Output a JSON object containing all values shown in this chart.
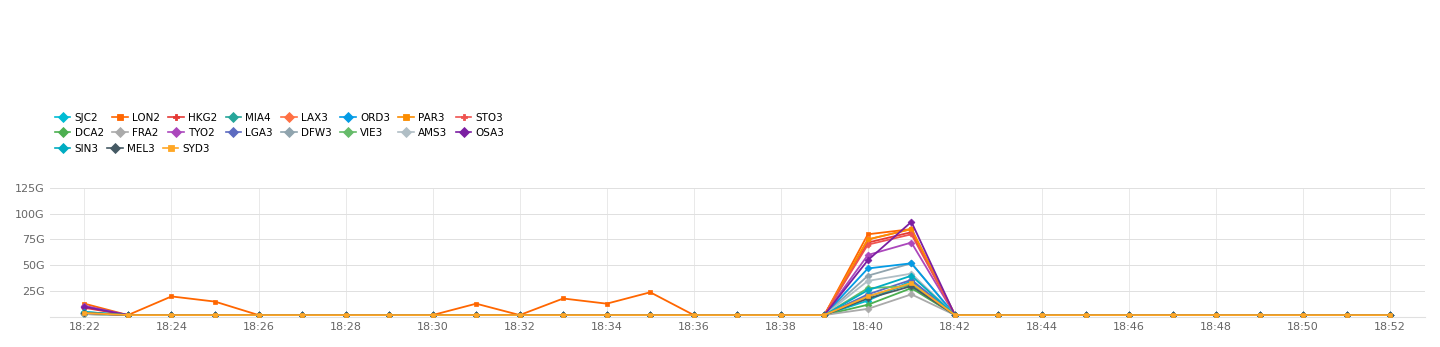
{
  "series": {
    "SJC2": {
      "color": "#00bcd4",
      "marker": "D",
      "lw": 1.3,
      "values": [
        5,
        2,
        2,
        2,
        2,
        2,
        2,
        2,
        2,
        2,
        2,
        2,
        2,
        2,
        2,
        2,
        2,
        2,
        16,
        35,
        2,
        2,
        2,
        2,
        2,
        2,
        2,
        2,
        2,
        2,
        2
      ]
    },
    "DCA2": {
      "color": "#4caf50",
      "marker": "D",
      "lw": 1.3,
      "values": [
        4,
        2,
        2,
        2,
        2,
        2,
        2,
        2,
        2,
        2,
        2,
        2,
        2,
        2,
        2,
        2,
        2,
        2,
        12,
        28,
        2,
        2,
        2,
        2,
        2,
        2,
        2,
        2,
        2,
        2,
        2
      ]
    },
    "LON2": {
      "color": "#ff6600",
      "marker": "s",
      "lw": 1.3,
      "values": [
        13,
        2,
        20,
        15,
        2,
        2,
        2,
        2,
        2,
        13,
        2,
        18,
        13,
        24,
        2,
        2,
        2,
        2,
        80,
        85,
        2,
        2,
        2,
        2,
        2,
        2,
        2,
        2,
        2,
        2,
        2
      ]
    },
    "FRA2": {
      "color": "#aaaaaa",
      "marker": "D",
      "lw": 1.3,
      "values": [
        3,
        2,
        2,
        2,
        2,
        2,
        2,
        2,
        2,
        2,
        2,
        2,
        2,
        2,
        2,
        2,
        2,
        2,
        8,
        22,
        2,
        2,
        2,
        2,
        2,
        2,
        2,
        2,
        2,
        2,
        2
      ]
    },
    "HKG2": {
      "color": "#e53935",
      "marker": "P",
      "lw": 1.3,
      "values": [
        9,
        2,
        2,
        2,
        2,
        2,
        2,
        2,
        2,
        2,
        2,
        2,
        2,
        2,
        2,
        2,
        2,
        2,
        72,
        82,
        2,
        2,
        2,
        2,
        2,
        2,
        2,
        2,
        2,
        2,
        2
      ]
    },
    "TYO2": {
      "color": "#ab47bc",
      "marker": "D",
      "lw": 1.3,
      "values": [
        11,
        2,
        2,
        2,
        2,
        2,
        2,
        2,
        2,
        2,
        2,
        2,
        2,
        2,
        2,
        2,
        2,
        2,
        60,
        72,
        2,
        2,
        2,
        2,
        2,
        2,
        2,
        2,
        2,
        2,
        2
      ]
    },
    "MIA4": {
      "color": "#26a69a",
      "marker": "D",
      "lw": 1.3,
      "values": [
        4,
        2,
        2,
        2,
        2,
        2,
        2,
        2,
        2,
        2,
        2,
        2,
        2,
        2,
        2,
        2,
        2,
        2,
        20,
        32,
        2,
        2,
        2,
        2,
        2,
        2,
        2,
        2,
        2,
        2,
        2
      ]
    },
    "LGA3": {
      "color": "#5c6bc0",
      "marker": "D",
      "lw": 1.3,
      "values": [
        4,
        2,
        2,
        2,
        2,
        2,
        2,
        2,
        2,
        2,
        2,
        2,
        2,
        2,
        2,
        2,
        2,
        2,
        22,
        36,
        2,
        2,
        2,
        2,
        2,
        2,
        2,
        2,
        2,
        2,
        2
      ]
    },
    "LAX3": {
      "color": "#ff7043",
      "marker": "D",
      "lw": 1.3,
      "values": [
        4,
        2,
        2,
        2,
        2,
        2,
        2,
        2,
        2,
        2,
        2,
        2,
        2,
        2,
        2,
        2,
        2,
        2,
        75,
        85,
        2,
        2,
        2,
        2,
        2,
        2,
        2,
        2,
        2,
        2,
        2
      ]
    },
    "DFW3": {
      "color": "#90a4ae",
      "marker": "D",
      "lw": 1.3,
      "values": [
        3,
        2,
        2,
        2,
        2,
        2,
        2,
        2,
        2,
        2,
        2,
        2,
        2,
        2,
        2,
        2,
        2,
        2,
        40,
        52,
        2,
        2,
        2,
        2,
        2,
        2,
        2,
        2,
        2,
        2,
        2
      ]
    },
    "ORD3": {
      "color": "#039be5",
      "marker": "D",
      "lw": 1.3,
      "values": [
        4,
        2,
        2,
        2,
        2,
        2,
        2,
        2,
        2,
        2,
        2,
        2,
        2,
        2,
        2,
        2,
        2,
        2,
        47,
        52,
        2,
        2,
        2,
        2,
        2,
        2,
        2,
        2,
        2,
        2,
        2
      ]
    },
    "VIE3": {
      "color": "#66bb6a",
      "marker": "D",
      "lw": 1.3,
      "values": [
        3,
        2,
        2,
        2,
        2,
        2,
        2,
        2,
        2,
        2,
        2,
        2,
        2,
        2,
        2,
        2,
        2,
        2,
        28,
        30,
        2,
        2,
        2,
        2,
        2,
        2,
        2,
        2,
        2,
        2,
        2
      ]
    },
    "PAR3": {
      "color": "#fb8c00",
      "marker": "s",
      "lw": 1.3,
      "values": [
        4,
        2,
        2,
        2,
        2,
        2,
        2,
        2,
        2,
        2,
        2,
        2,
        2,
        2,
        2,
        2,
        2,
        2,
        75,
        85,
        2,
        2,
        2,
        2,
        2,
        2,
        2,
        2,
        2,
        2,
        2
      ]
    },
    "AMS3": {
      "color": "#b0bec5",
      "marker": "D",
      "lw": 1.3,
      "values": [
        3,
        2,
        2,
        2,
        2,
        2,
        2,
        2,
        2,
        2,
        2,
        2,
        2,
        2,
        2,
        2,
        2,
        2,
        35,
        42,
        2,
        2,
        2,
        2,
        2,
        2,
        2,
        2,
        2,
        2,
        2
      ]
    },
    "STO3": {
      "color": "#ef5350",
      "marker": "P",
      "lw": 1.3,
      "values": [
        4,
        2,
        2,
        2,
        2,
        2,
        2,
        2,
        2,
        2,
        2,
        2,
        2,
        2,
        2,
        2,
        2,
        2,
        70,
        80,
        2,
        2,
        2,
        2,
        2,
        2,
        2,
        2,
        2,
        2,
        2
      ]
    },
    "OSA3": {
      "color": "#7b1fa2",
      "marker": "D",
      "lw": 1.3,
      "values": [
        10,
        2,
        2,
        2,
        2,
        2,
        2,
        2,
        2,
        2,
        2,
        2,
        2,
        2,
        2,
        2,
        2,
        2,
        55,
        92,
        2,
        2,
        2,
        2,
        2,
        2,
        2,
        2,
        2,
        2,
        2
      ]
    },
    "SIN3": {
      "color": "#00acc1",
      "marker": "D",
      "lw": 1.3,
      "values": [
        5,
        2,
        2,
        2,
        2,
        2,
        2,
        2,
        2,
        2,
        2,
        2,
        2,
        2,
        2,
        2,
        2,
        2,
        26,
        40,
        2,
        2,
        2,
        2,
        2,
        2,
        2,
        2,
        2,
        2,
        2
      ]
    },
    "MEL3": {
      "color": "#455a64",
      "marker": "D",
      "lw": 1.3,
      "values": [
        4,
        2,
        2,
        2,
        2,
        2,
        2,
        2,
        2,
        2,
        2,
        2,
        2,
        2,
        2,
        2,
        2,
        2,
        18,
        30,
        2,
        2,
        2,
        2,
        2,
        2,
        2,
        2,
        2,
        2,
        2
      ]
    },
    "SYD3": {
      "color": "#ffa726",
      "marker": "s",
      "lw": 1.3,
      "values": [
        4,
        2,
        2,
        2,
        2,
        2,
        2,
        2,
        2,
        2,
        2,
        2,
        2,
        2,
        2,
        2,
        2,
        2,
        20,
        33,
        2,
        2,
        2,
        2,
        2,
        2,
        2,
        2,
        2,
        2,
        2
      ]
    }
  },
  "time_labels": [
    "18:22",
    "18:24",
    "18:26",
    "18:28",
    "18:30",
    "18:32",
    "18:34",
    "18:36",
    "18:38",
    "18:40",
    "18:42",
    "18:44",
    "18:46",
    "18:48",
    "18:50",
    "18:52"
  ],
  "n_ticks": 16,
  "n_points": 31,
  "ylim": [
    0,
    125
  ],
  "yticks": [
    0,
    25,
    50,
    75,
    100,
    125
  ],
  "ytick_labels": [
    "",
    "25G",
    "50G",
    "75G",
    "100G",
    "125G"
  ],
  "background_color": "#ffffff",
  "grid_color": "#e0e0e0",
  "legend_row1": [
    "SJC2",
    "DCA2",
    "LON2",
    "FRA2",
    "HKG2",
    "TYO2",
    "MIA4",
    "LGA3",
    "LAX3",
    "DFW3",
    "ORD3",
    "VIE3",
    "PAR3",
    "AMS3",
    "STO3",
    "OSA3"
  ],
  "legend_row2": [
    "SIN3",
    "MEL3",
    "SYD3"
  ],
  "plot_order": [
    "SJC2",
    "DCA2",
    "LON2",
    "FRA2",
    "HKG2",
    "TYO2",
    "MIA4",
    "LGA3",
    "LAX3",
    "DFW3",
    "ORD3",
    "VIE3",
    "PAR3",
    "AMS3",
    "STO3",
    "OSA3",
    "SIN3",
    "MEL3",
    "SYD3"
  ]
}
